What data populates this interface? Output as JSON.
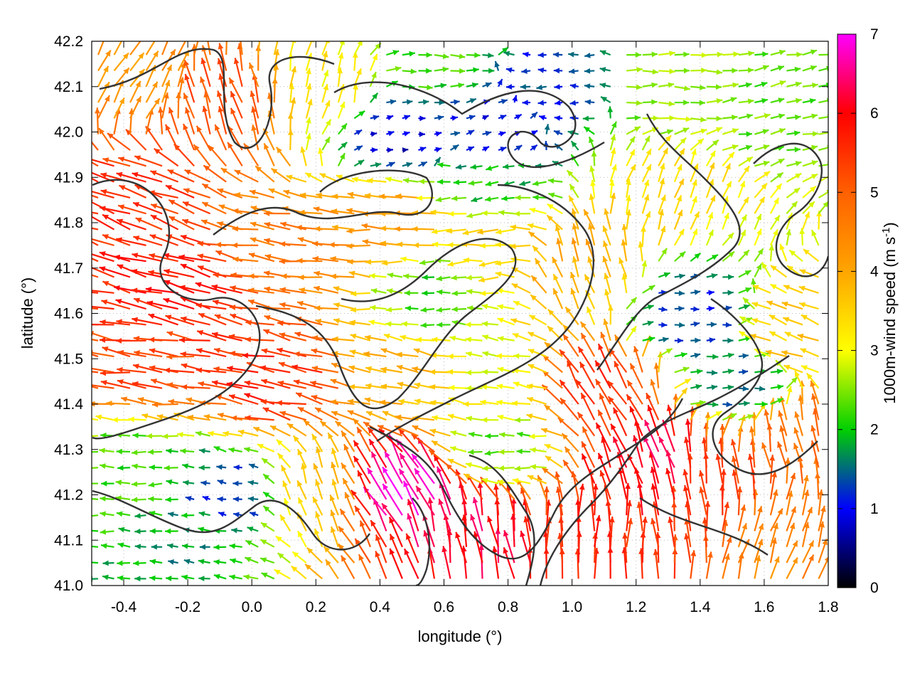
{
  "chart_data": {
    "type": "quiver",
    "xlabel": "longitude (°)",
    "ylabel": "latitude (°)",
    "colorbar": {
      "label_main": "1000m-wind speed (m s",
      "label_exp": "-1",
      "label_close": ")",
      "range": [
        0,
        7
      ],
      "ticks": [
        "0",
        "1",
        "2",
        "3",
        "4",
        "5",
        "6",
        "7"
      ],
      "stops": [
        {
          "v": 0,
          "color": "#000000"
        },
        {
          "v": 1,
          "color": "#0000ff"
        },
        {
          "v": 2,
          "color": "#00d000"
        },
        {
          "v": 3,
          "color": "#ffff00"
        },
        {
          "v": 4,
          "color": "#ffa500"
        },
        {
          "v": 5,
          "color": "#ff6000"
        },
        {
          "v": 6,
          "color": "#ff0000"
        },
        {
          "v": 7,
          "color": "#ff00ff"
        }
      ]
    },
    "xlim": [
      -0.5,
      1.8
    ],
    "ylim": [
      41.0,
      42.2
    ],
    "xticks": [
      "-0.4",
      "-0.2",
      "0.0",
      "0.2",
      "0.4",
      "0.6",
      "0.8",
      "1.0",
      "1.2",
      "1.4",
      "1.6",
      "1.8"
    ],
    "yticks": [
      "41.0",
      "41.1",
      "41.2",
      "41.3",
      "41.4",
      "41.5",
      "41.6",
      "41.7",
      "41.8",
      "41.9",
      "42.0",
      "42.1",
      "42.2"
    ],
    "grid": "dotted",
    "wind_regions": [
      {
        "lon": -0.35,
        "lat": 42.1,
        "speed": 4.2,
        "dir": 60
      },
      {
        "lon": -0.1,
        "lat": 42.05,
        "speed": 5.2,
        "dir": 110
      },
      {
        "lon": 0.25,
        "lat": 42.1,
        "speed": 3.2,
        "dir": 80
      },
      {
        "lon": 0.55,
        "lat": 42.15,
        "speed": 2.2,
        "dir": 0
      },
      {
        "lon": 0.45,
        "lat": 42.0,
        "speed": 0.8,
        "dir": 10
      },
      {
        "lon": 0.75,
        "lat": 42.0,
        "speed": 1.0,
        "dir": 20
      },
      {
        "lon": 0.95,
        "lat": 42.1,
        "speed": 1.2,
        "dir": 180
      },
      {
        "lon": 1.3,
        "lat": 42.1,
        "speed": 2.6,
        "dir": 0
      },
      {
        "lon": 1.6,
        "lat": 42.05,
        "speed": 2.4,
        "dir": 10
      },
      {
        "lon": 1.3,
        "lat": 41.85,
        "speed": 3.4,
        "dir": 70
      },
      {
        "lon": -0.35,
        "lat": 41.85,
        "speed": 5.5,
        "dir": 160
      },
      {
        "lon": -0.2,
        "lat": 41.65,
        "speed": 5.8,
        "dir": 165
      },
      {
        "lon": 0.15,
        "lat": 41.75,
        "speed": 4.6,
        "dir": 172
      },
      {
        "lon": 0.45,
        "lat": 41.8,
        "speed": 4.2,
        "dir": 178
      },
      {
        "lon": 0.75,
        "lat": 41.75,
        "speed": 3.5,
        "dir": 185
      },
      {
        "lon": 0.75,
        "lat": 41.9,
        "speed": 2.0,
        "dir": 190
      },
      {
        "lon": 1.05,
        "lat": 41.7,
        "speed": 4.0,
        "dir": 110
      },
      {
        "lon": 0.6,
        "lat": 41.65,
        "speed": 2.2,
        "dir": 180
      },
      {
        "lon": 1.35,
        "lat": 41.6,
        "speed": 1.2,
        "dir": 0
      },
      {
        "lon": 1.5,
        "lat": 41.45,
        "speed": 1.5,
        "dir": 0
      },
      {
        "lon": 1.7,
        "lat": 41.55,
        "speed": 3.6,
        "dir": 160
      },
      {
        "lon": -0.3,
        "lat": 41.5,
        "speed": 5.3,
        "dir": 172
      },
      {
        "lon": 0.1,
        "lat": 41.45,
        "speed": 5.6,
        "dir": 168
      },
      {
        "lon": 0.5,
        "lat": 41.45,
        "speed": 3.8,
        "dir": 170
      },
      {
        "lon": 0.8,
        "lat": 41.45,
        "speed": 3.0,
        "dir": 172
      },
      {
        "lon": 1.1,
        "lat": 41.42,
        "speed": 5.5,
        "dir": 120
      },
      {
        "lon": -0.35,
        "lat": 41.25,
        "speed": 2.2,
        "dir": 180
      },
      {
        "lon": -0.2,
        "lat": 41.1,
        "speed": 1.8,
        "dir": 175
      },
      {
        "lon": -0.05,
        "lat": 41.2,
        "speed": 1.2,
        "dir": 170
      },
      {
        "lon": 0.2,
        "lat": 41.2,
        "speed": 3.6,
        "dir": 110
      },
      {
        "lon": 0.5,
        "lat": 41.2,
        "speed": 6.8,
        "dir": 120
      },
      {
        "lon": 0.7,
        "lat": 41.1,
        "speed": 6.2,
        "dir": 100
      },
      {
        "lon": 0.8,
        "lat": 41.3,
        "speed": 2.4,
        "dir": 180
      },
      {
        "lon": 1.05,
        "lat": 41.1,
        "speed": 5.6,
        "dir": 90
      },
      {
        "lon": 1.25,
        "lat": 41.25,
        "speed": 6.3,
        "dir": 110
      },
      {
        "lon": 1.45,
        "lat": 41.2,
        "speed": 5.4,
        "dir": 95
      },
      {
        "lon": 1.65,
        "lat": 41.1,
        "speed": 4.4,
        "dir": 70
      },
      {
        "lon": 1.7,
        "lat": 41.3,
        "speed": 4.8,
        "dir": 100
      }
    ]
  }
}
